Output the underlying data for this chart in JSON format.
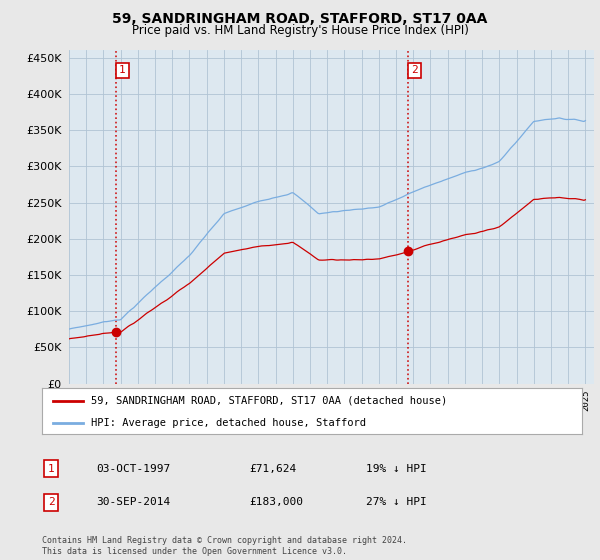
{
  "title": "59, SANDRINGHAM ROAD, STAFFORD, ST17 0AA",
  "subtitle": "Price paid vs. HM Land Registry's House Price Index (HPI)",
  "ylim": [
    0,
    460000
  ],
  "yticks": [
    0,
    50000,
    100000,
    150000,
    200000,
    250000,
    300000,
    350000,
    400000,
    450000
  ],
  "sale1_year": 1997.75,
  "sale1_price": 71624,
  "sale2_year": 2014.75,
  "sale2_price": 183000,
  "legend_red": "59, SANDRINGHAM ROAD, STAFFORD, ST17 0AA (detached house)",
  "legend_blue": "HPI: Average price, detached house, Stafford",
  "ann1_date": "03-OCT-1997",
  "ann1_price": "£71,624",
  "ann1_hpi": "19% ↓ HPI",
  "ann2_date": "30-SEP-2014",
  "ann2_price": "£183,000",
  "ann2_hpi": "27% ↓ HPI",
  "footer": "Contains HM Land Registry data © Crown copyright and database right 2024.\nThis data is licensed under the Open Government Licence v3.0.",
  "red_color": "#cc0000",
  "blue_color": "#7aade0",
  "bg_color": "#e8e8e8",
  "plot_bg": "#dde8f0",
  "grid_color": "#b0c4d4",
  "xlim_start": 1995.0,
  "xlim_end": 2025.5
}
